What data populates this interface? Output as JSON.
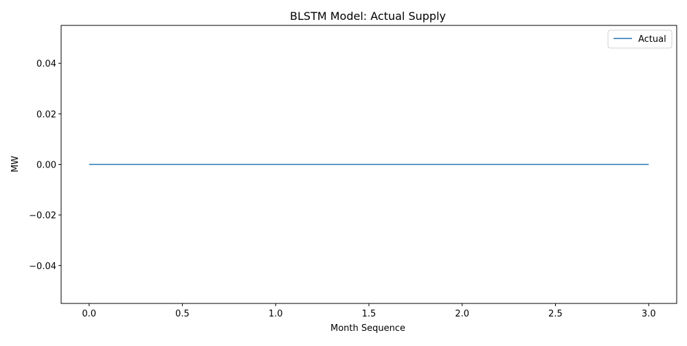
{
  "chart_data": {
    "type": "line",
    "title": "BLSTM Model: Actual Supply",
    "xlabel": "Month Sequence",
    "ylabel": "MW",
    "xlim": [
      -0.15,
      3.15
    ],
    "ylim": [
      -0.055,
      0.055
    ],
    "x_ticks": [
      0.0,
      0.5,
      1.0,
      1.5,
      2.0,
      2.5,
      3.0
    ],
    "x_tick_labels": [
      "0.0",
      "0.5",
      "1.0",
      "1.5",
      "2.0",
      "2.5",
      "3.0"
    ],
    "y_ticks": [
      -0.04,
      -0.02,
      0.0,
      0.02,
      0.04
    ],
    "y_tick_labels": [
      "−0.04",
      "−0.02",
      "0.00",
      "0.02",
      "0.04"
    ],
    "grid": false,
    "legend_position": "upper-right",
    "series": [
      {
        "name": "Actual",
        "color": "#1f77b4",
        "x": [
          0,
          1,
          2,
          3
        ],
        "y": [
          0,
          0,
          0,
          0
        ]
      }
    ]
  }
}
